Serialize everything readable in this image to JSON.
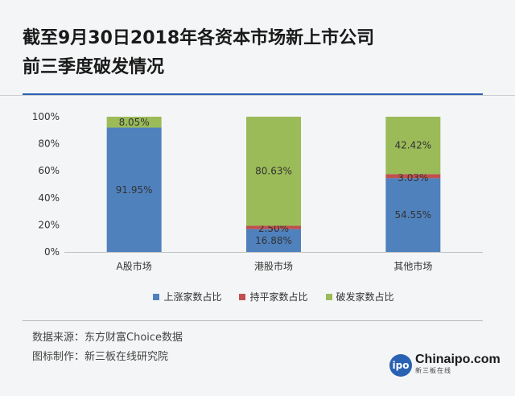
{
  "title_lines": [
    "截至9月30日2018年各资本市场新上市公司",
    "前三季度破发情况"
  ],
  "chart_data": {
    "type": "bar",
    "stacked": true,
    "categories": [
      "A股市场",
      "港股市场",
      "其他市场"
    ],
    "series": [
      {
        "name": "上涨家数占比",
        "color": "#4f81bd",
        "values": [
          91.95,
          16.88,
          54.55
        ],
        "labels": [
          "91.95%",
          "16.88%",
          "54.55%"
        ]
      },
      {
        "name": "持平家数占比",
        "color": "#c0504d",
        "values": [
          0,
          2.5,
          3.03
        ],
        "labels": [
          "",
          "2.50%",
          "3.03%"
        ]
      },
      {
        "name": "破发家数占比",
        "color": "#9bbb59",
        "values": [
          8.05,
          80.63,
          42.42
        ],
        "labels": [
          "8.05%",
          "80.63%",
          "42.42%"
        ]
      }
    ],
    "ylim": [
      0,
      100
    ],
    "yticks": [
      "0%",
      "20%",
      "40%",
      "60%",
      "80%",
      "100%"
    ],
    "legend_position": "bottom"
  },
  "footer": {
    "source": "数据来源：东方财富Choice数据",
    "maker": "图标制作：新三板在线研究院"
  },
  "logo": {
    "circle": "ipo",
    "main": "Chinaipo.com",
    "sub": "新三板在线"
  },
  "colors": {
    "accent": "#2a62b3"
  }
}
